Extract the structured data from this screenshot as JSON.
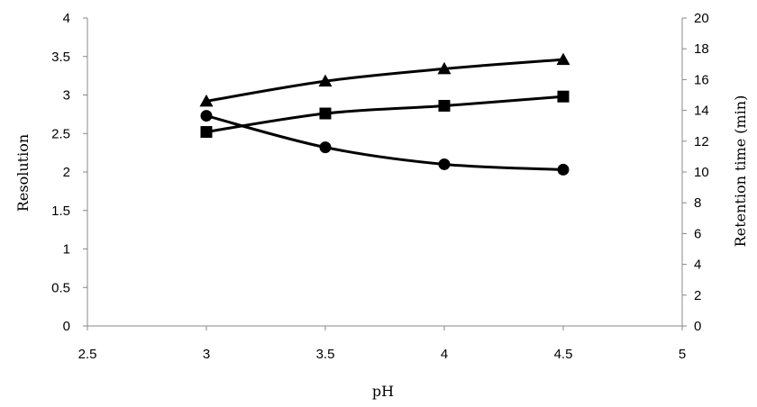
{
  "chart_data": {
    "type": "line",
    "xlabel": "pH",
    "ylabel_left": "Resolution",
    "ylabel_right": "Retention time (min)",
    "xlim": [
      2.5,
      5
    ],
    "ylim_left": [
      0,
      4
    ],
    "ylim_right": [
      0,
      20
    ],
    "grid": false,
    "x_ticks": [
      "2.5",
      "3",
      "3.5",
      "4",
      "4.5",
      "5"
    ],
    "y_left_ticks": [
      "0",
      "0.5",
      "1",
      "1.5",
      "2",
      "2.5",
      "3",
      "3.5",
      "4"
    ],
    "y_right_ticks": [
      "0",
      "2",
      "4",
      "6",
      "8",
      "10",
      "12",
      "14",
      "16",
      "18",
      "20"
    ],
    "series": [
      {
        "marker": "triangle",
        "axis": "right",
        "x": [
          3,
          3.5,
          4,
          4.5
        ],
        "values": [
          14.6,
          15.9,
          16.7,
          17.3
        ]
      },
      {
        "marker": "square",
        "axis": "right",
        "x": [
          3,
          3.5,
          4,
          4.5
        ],
        "values": [
          12.6,
          13.8,
          14.3,
          14.9
        ]
      },
      {
        "marker": "circle",
        "axis": "left",
        "x": [
          3,
          3.5,
          4,
          4.5
        ],
        "values": [
          2.73,
          2.32,
          2.1,
          2.03
        ]
      }
    ],
    "colors": {
      "line": "#000000",
      "axis": "#888888"
    }
  }
}
